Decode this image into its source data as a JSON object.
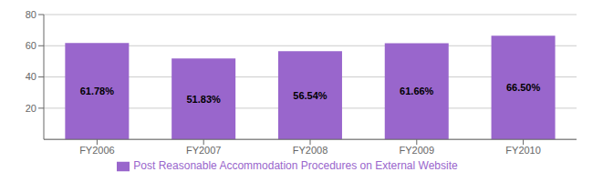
{
  "chart_data": {
    "type": "bar",
    "categories": [
      "FY2006",
      "FY2007",
      "FY2008",
      "FY2009",
      "FY2010"
    ],
    "series": [
      {
        "name": "Post Reasonable Accommodation Procedures on External Website",
        "color": "#9966CC",
        "values": [
          61.78,
          51.83,
          56.54,
          61.66,
          66.5
        ],
        "value_labels": [
          "61.78%",
          "51.83%",
          "56.54%",
          "61.66%",
          "66.50%"
        ]
      }
    ],
    "ylim": [
      0,
      80
    ],
    "yticks": [
      20,
      40,
      60,
      80
    ],
    "grid": true,
    "legend": "bottom",
    "data_labels": true
  }
}
